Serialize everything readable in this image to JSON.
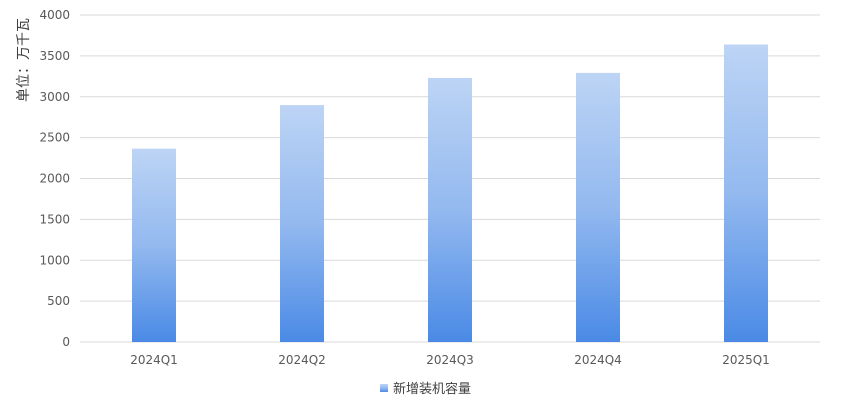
{
  "chart_data": {
    "type": "bar",
    "title": "",
    "xlabel": "",
    "ylabel": "单位：万千瓦",
    "categories": [
      "2024Q1",
      "2024Q2",
      "2024Q3",
      "2024Q4",
      "2025Q1"
    ],
    "series": [
      {
        "name": "新增装机容量",
        "values": [
          2365,
          2898,
          3230,
          3292,
          3639
        ]
      }
    ],
    "ylim": [
      0,
      4000
    ],
    "yticks": [
      0,
      500,
      1000,
      1500,
      2000,
      2500,
      3000,
      3500,
      4000
    ],
    "grid": true,
    "legend": "bottom",
    "colors": {
      "bar_top": "#bdd4f5",
      "bar_bottom": "#4a8ae6",
      "grid": "#d9d9d9"
    }
  }
}
